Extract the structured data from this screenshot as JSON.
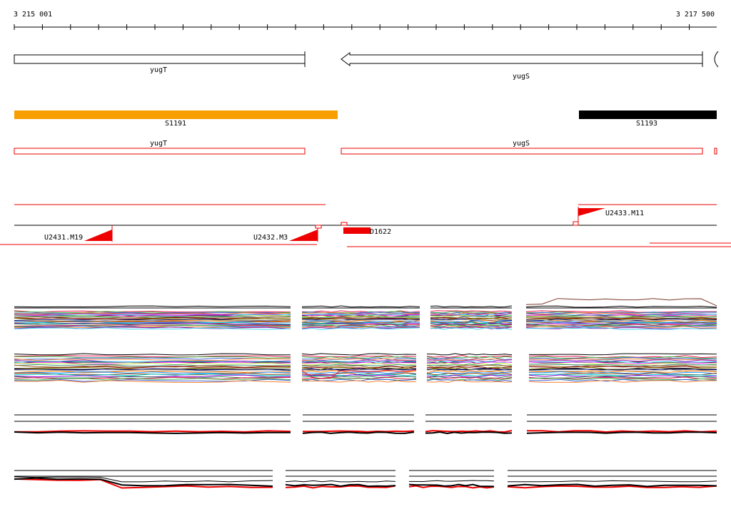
{
  "ruler": {
    "start_label": "3 215 001",
    "end_label": "3 217 500"
  },
  "genes": {
    "yugT": "yugT",
    "yugS": "yugS"
  },
  "segments": {
    "s1191": "S1191",
    "s1193": "S1193"
  },
  "features": {
    "u2431": "U2431.M19",
    "u2432": "U2432.M3",
    "u2433": "U2433.M11",
    "d1622": "D1622"
  },
  "colors": {
    "segment_orange": "#f79e00",
    "segment_black": "#000000",
    "feature_red": "#ee0000",
    "axis_black": "#000000"
  },
  "profile_palette": [
    "#e6194b",
    "#3cb44b",
    "#4363d8",
    "#f58231",
    "#911eb4",
    "#42d4f4",
    "#f032e6",
    "#bfef45",
    "#469990",
    "#9a6324",
    "#800000",
    "#808000",
    "#000075",
    "#a9a9a9",
    "#ff7f00",
    "#1e90ff",
    "#8b4513",
    "#00ced1",
    "#9400d3",
    "#2e8b57"
  ]
}
